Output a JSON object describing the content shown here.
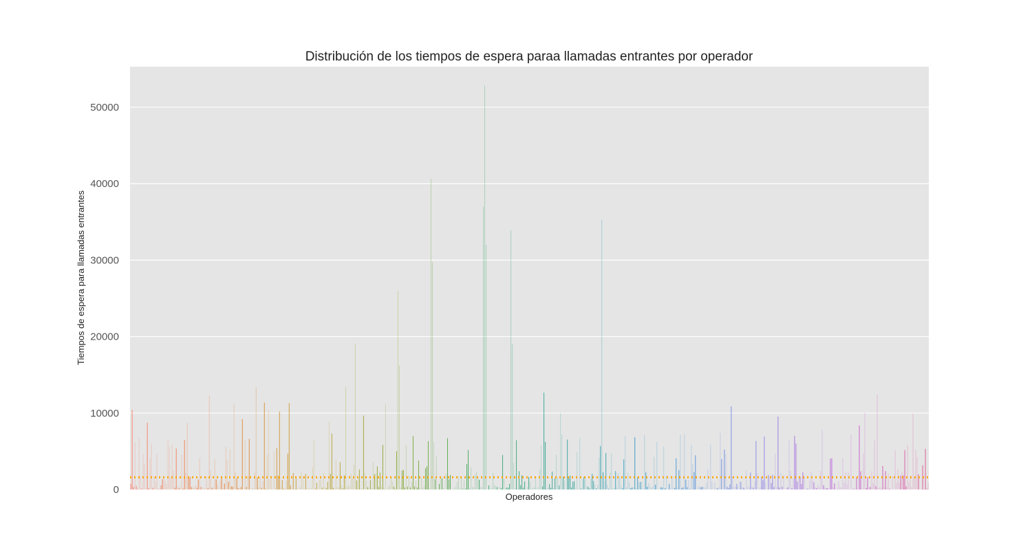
{
  "chart_data": {
    "type": "bar",
    "title": "Distribución de los tiempos de espera paraa llamadas entrantes por operador",
    "xlabel": "Operadores",
    "ylabel": "Tiempos de espera para llamadas entrantes",
    "ylim": [
      0,
      55300
    ],
    "yticks": [
      "0",
      "10000",
      "20000",
      "30000",
      "40000",
      "50000"
    ],
    "grid": true,
    "x_tick_labels_shown": false,
    "bar_count": 580,
    "reference_line": {
      "value": 1600,
      "style": "dotted",
      "color": "#ffa500"
    },
    "prominent_values": [
      {
        "position": 0.706,
        "value": 8700
      },
      {
        "position": 0.985,
        "value": 12300
      },
      {
        "position": 1.565,
        "value": 13400
      },
      {
        "position": 3.346,
        "value": 25900
      },
      {
        "position": 3.363,
        "value": 16200
      },
      {
        "position": 3.76,
        "value": 40600
      },
      {
        "position": 3.77,
        "value": 29800
      },
      {
        "position": 4.434,
        "value": 52800
      },
      {
        "position": 4.417,
        "value": 37000
      },
      {
        "position": 4.427,
        "value": 38000
      },
      {
        "position": 4.45,
        "value": 32000
      },
      {
        "position": 4.75,
        "value": 33900
      },
      {
        "position": 4.776,
        "value": 19000
      },
      {
        "position": 5.903,
        "value": 35300
      },
      {
        "position": 2.81,
        "value": 19100
      },
      {
        "position": 2.69,
        "value": 13400
      }
    ]
  },
  "colors": {
    "background": "#e5e5e5",
    "grid": "#ffffff",
    "reference_line": "#ffa500",
    "palette_hues": [
      "#fa8072",
      "#e8803a",
      "#c8a23a",
      "#8aa832",
      "#3aaa6a",
      "#3aa6a0",
      "#3a9ad0",
      "#8a8ae8",
      "#c060d8",
      "#e05890"
    ]
  }
}
